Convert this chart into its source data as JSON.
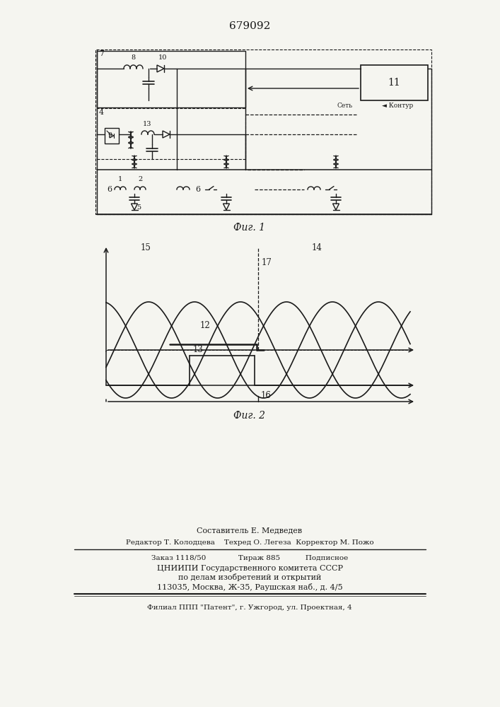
{
  "patent_number": "679092",
  "fig1_caption": "Фиг. 1",
  "fig2_caption": "Фиг. 2",
  "footer_line1": "Составитель Е. Медведев",
  "footer_line2": "Редактор Т. Колодцева    Техред О. Легеза  Корректор М. Пожо",
  "footer_line3": "Заказ 1118/50              Тираж 885           Подписное",
  "footer_line4": "ЦНИИПИ Государственного комитета СССР",
  "footer_line5": "по делам изобретений и открытий",
  "footer_line6": "113035, Москва, Ж-35, Раушская наб., д. 4/5",
  "footer_line7": "Филиал ППП \"Патент\", г. Ужгород, ул. Проектная, 4",
  "bg_color": "#f5f5f0",
  "line_color": "#1a1a1a"
}
